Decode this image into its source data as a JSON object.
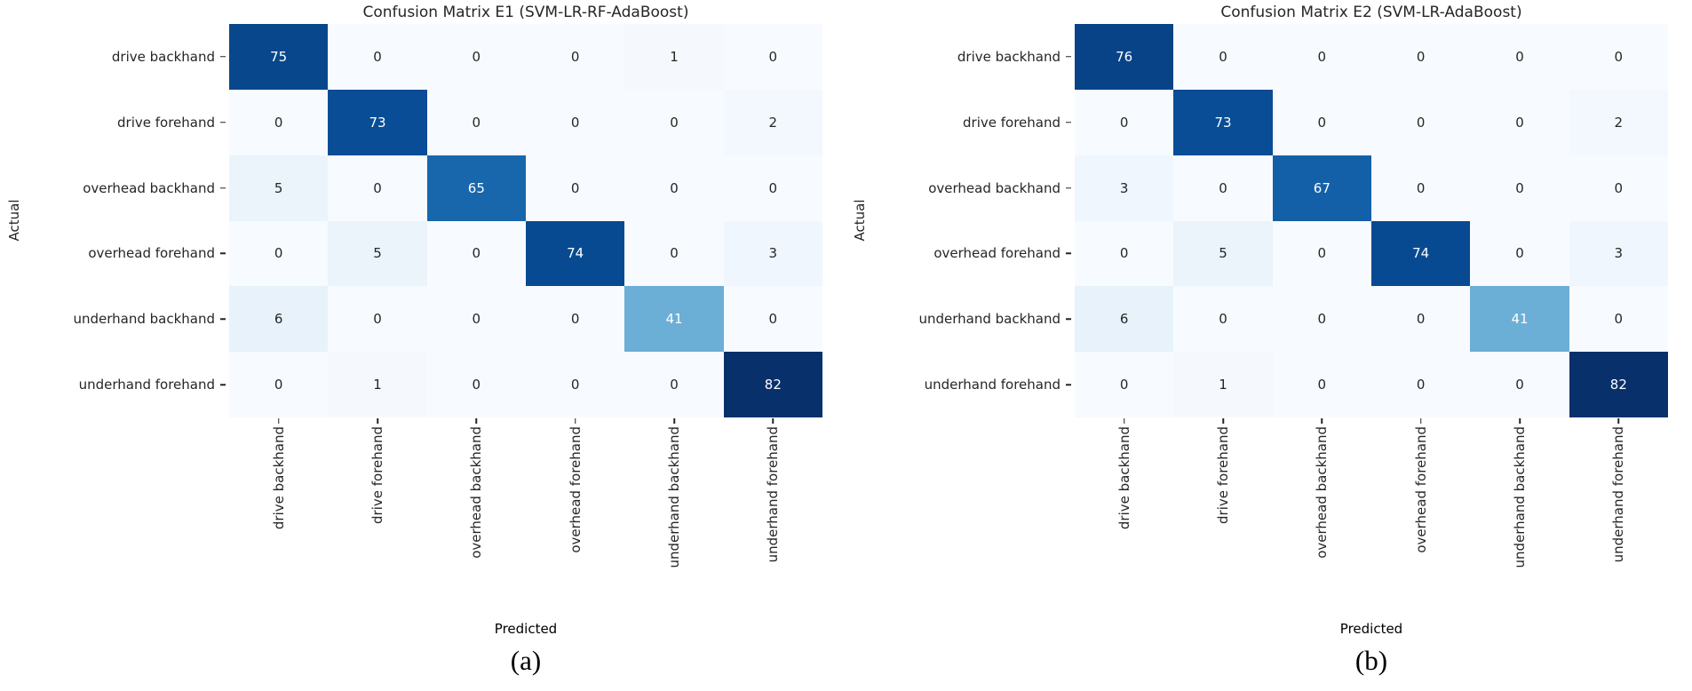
{
  "figure": {
    "background": "#ffffff",
    "annotation_text_dark": "#262626",
    "annotation_text_light": "#ffffff"
  },
  "chart_data": [
    {
      "type": "heatmap",
      "title": "Confusion Matrix E1 (SVM-LR-RF-AdaBoost)",
      "caption": "(a)",
      "xlabel": "Predicted",
      "ylabel": "Actual",
      "categories": [
        "drive backhand",
        "drive forehand",
        "overhead backhand",
        "overhead forehand",
        "underhand backhand",
        "underhand forehand"
      ],
      "values": [
        [
          75,
          0,
          0,
          0,
          1,
          0
        ],
        [
          0,
          73,
          0,
          0,
          0,
          2
        ],
        [
          5,
          0,
          65,
          0,
          0,
          0
        ],
        [
          0,
          5,
          0,
          74,
          0,
          3
        ],
        [
          6,
          0,
          0,
          0,
          41,
          0
        ],
        [
          0,
          1,
          0,
          0,
          0,
          82
        ]
      ],
      "vmin": 0,
      "vmax": 82,
      "colormap": "Blues",
      "colormap_stops": [
        "#f7fbff",
        "#deebf7",
        "#c6dbef",
        "#9ecae1",
        "#6baed6",
        "#4292c6",
        "#2171b5",
        "#08519c",
        "#08306b"
      ],
      "legend": "none",
      "grid": false
    },
    {
      "type": "heatmap",
      "title": "Confusion Matrix E2 (SVM-LR-AdaBoost)",
      "caption": "(b)",
      "xlabel": "Predicted",
      "ylabel": "Actual",
      "categories": [
        "drive backhand",
        "drive forehand",
        "overhead backhand",
        "overhead forehand",
        "underhand backhand",
        "underhand forehand"
      ],
      "values": [
        [
          76,
          0,
          0,
          0,
          0,
          0
        ],
        [
          0,
          73,
          0,
          0,
          0,
          2
        ],
        [
          3,
          0,
          67,
          0,
          0,
          0
        ],
        [
          0,
          5,
          0,
          74,
          0,
          3
        ],
        [
          6,
          0,
          0,
          0,
          41,
          0
        ],
        [
          0,
          1,
          0,
          0,
          0,
          82
        ]
      ],
      "vmin": 0,
      "vmax": 82,
      "colormap": "Blues",
      "colormap_stops": [
        "#f7fbff",
        "#deebf7",
        "#c6dbef",
        "#9ecae1",
        "#6baed6",
        "#4292c6",
        "#2171b5",
        "#08519c",
        "#08306b"
      ],
      "legend": "none",
      "grid": false
    }
  ]
}
